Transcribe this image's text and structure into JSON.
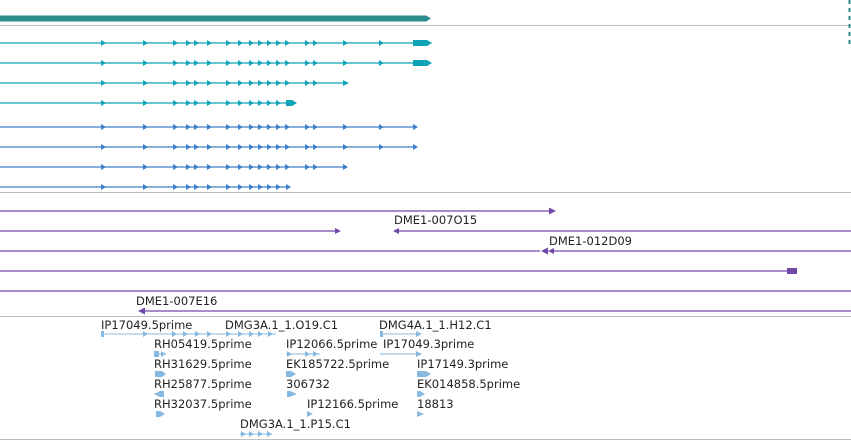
{
  "colors": {
    "gene": "#2e8b8b",
    "transcript_cyan": "#0fa3b8",
    "transcript_blue": "#3d7fc6",
    "clone": "#7048a8",
    "est": "#87b8e0",
    "separator": "#bdbdbd",
    "label": "#222222"
  },
  "clones": {
    "labels": [
      "DME1-007O15",
      "DME1-012D09",
      "DME1-007E16"
    ]
  },
  "ests": {
    "labels": [
      "IP17049.5prime",
      "DMG3A.1_1.O19.C1",
      "DMG4A.1_1.H12.C1",
      "RH05419.5prime",
      "IP12066.5prime",
      "IP17049.3prime",
      "RH31629.5prime",
      "EK185722.5prime",
      "IP17149.3prime",
      "RH25877.5prime",
      "306732",
      "EK014858.5prime",
      "RH32037.5prime",
      "IP12166.5prime",
      "18813",
      "DMG3A.1_1.P15.C1"
    ]
  }
}
